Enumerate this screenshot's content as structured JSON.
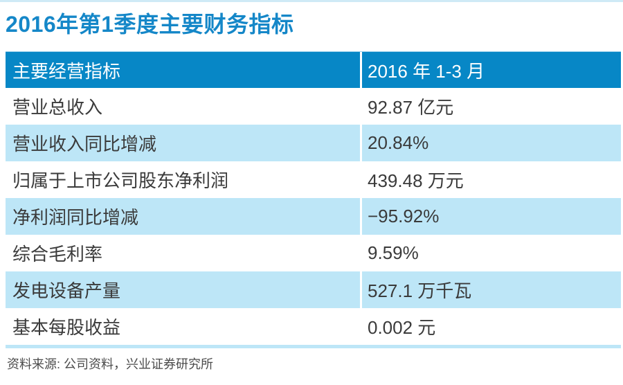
{
  "title": "2016年第1季度主要财务指标",
  "chart_data": {
    "type": "table",
    "title": "2016年第1季度主要财务指标",
    "columns": [
      "主要经营指标",
      "2016 年 1-3 月"
    ],
    "rows": [
      [
        "营业总收入",
        "92.87 亿元"
      ],
      [
        "营业收入同比增减",
        "20.84%"
      ],
      [
        "归属于上市公司股东净利润",
        "439.48 万元"
      ],
      [
        "净利润同比增减",
        "−95.92%"
      ],
      [
        "综合毛利率",
        "9.59%"
      ],
      [
        "发电设备产量",
        "527.1 万千瓦"
      ],
      [
        "基本每股收益",
        "0.002 元"
      ]
    ],
    "source": "资料来源: 公司资料，兴业证券研究所"
  },
  "colors": {
    "title_text": "#1587c8",
    "header_bg": "#0787c6",
    "header_text": "#ffffff",
    "stripe_bg": "#bde6f7",
    "body_text": "#3a3a3a",
    "top_rule": "#cfeaf6",
    "source_text": "#4b4b4b"
  }
}
